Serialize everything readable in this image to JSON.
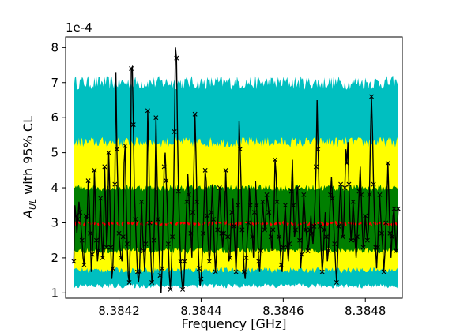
{
  "chart_data": {
    "type": "line",
    "xlabel": "Frequency [GHz]",
    "ylabel_main": "A",
    "ylabel_sub": "UL",
    "ylabel_rest": " with 95% CL",
    "offset_text": "1e-4",
    "xlim": [
      8.38407,
      8.38489
    ],
    "ylim": [
      0.85,
      8.3
    ],
    "x_ticks": [
      8.3842,
      8.3844,
      8.3846,
      8.3848
    ],
    "x_tick_labels": [
      "8.3842",
      "8.3844",
      "8.3846",
      "8.3848"
    ],
    "y_ticks": [
      1,
      2,
      3,
      4,
      5,
      6,
      7,
      8
    ],
    "y_tick_labels": [
      "1",
      "2",
      "3",
      "4",
      "5",
      "6",
      "7",
      "8"
    ],
    "colors": {
      "outer_band": "#00bfc0",
      "mid_band": "#ffff00",
      "inner_band": "#007f00",
      "median": "#ff0000",
      "observed": "#000000"
    },
    "bands": {
      "outer_upper_base": 7.0,
      "mid_upper_base": 5.3,
      "inner_upper_base": 4.0,
      "median": 2.98,
      "inner_lower_base": 2.2,
      "mid_lower_base": 1.65,
      "outer_lower_base": 1.2
    },
    "series": [
      {
        "values": [
          1.9,
          3.5,
          3.2,
          2.7,
          3.1,
          3.6,
          3.3,
          2.9,
          2.5,
          2.0,
          1.8,
          2.4,
          3.2,
          3.1,
          4.2,
          3.6,
          2.7,
          1.6,
          2.1,
          2.8,
          4.5,
          3.6,
          2.5,
          1.9,
          2.2,
          2.9,
          3.7,
          2.6,
          2.0,
          2.7,
          4.6,
          3.4,
          2.3,
          2.9,
          5.0,
          4.0,
          2.3,
          1.4,
          1.7,
          2.6,
          4.1,
          7.3,
          5.1,
          3.9,
          2.7,
          2.3,
          2.0,
          1.9,
          2.6,
          4.7,
          5.2,
          3.7,
          2.4,
          1.5,
          1.3,
          2.4,
          7.4,
          7.45,
          5.8,
          3.9,
          3.1,
          2.3,
          1.6,
          1.3,
          1.6,
          2.6,
          3.6,
          2.7,
          2.2,
          1.6,
          2.4,
          3.5,
          6.2,
          5.0,
          3.0,
          2.1,
          1.3,
          1.5,
          2.5,
          3.6,
          6.0,
          4.5,
          3.1,
          2.3,
          1.5,
          1.0,
          1.7,
          3.2,
          4.6,
          5.0,
          4.2,
          3.5,
          2.4,
          1.5,
          1.1,
          1.7,
          2.6,
          3.4,
          5.6,
          8.0,
          7.7,
          5.5,
          3.9,
          2.8,
          1.9,
          1.4,
          1.1,
          1.2,
          1.9,
          2.8,
          3.6,
          4.4,
          3.8,
          3.1,
          2.7,
          2.0,
          3.3,
          4.5,
          6.1,
          5.0,
          3.6,
          2.5,
          1.7,
          1.2,
          1.4,
          2.0,
          2.7,
          3.6,
          4.5,
          4.2,
          3.2,
          2.4,
          1.9,
          2.2,
          3.3,
          4.1,
          3.1,
          2.2,
          1.6,
          2.1,
          2.8,
          3.4,
          4.0,
          3.4,
          2.7,
          2.3,
          2.7,
          3.2,
          4.5,
          3.6,
          2.6,
          1.9,
          2.0,
          2.8,
          3.3,
          3.7,
          2.9,
          2.3,
          1.6,
          2.3,
          3.5,
          5.9,
          5.1,
          4.0,
          2.8,
          2.2,
          1.6,
          1.4,
          2.0,
          2.6,
          3.0,
          4.0,
          3.5,
          2.9,
          2.6,
          2.0,
          3.3,
          4.2,
          3.5,
          2.8,
          1.9,
          1.6,
          2.2,
          3.0,
          3.6,
          3.1,
          2.8,
          3.2,
          3.8,
          3.6,
          3.3,
          2.9,
          2.6,
          2.2,
          2.8,
          3.3,
          4.8,
          4.4,
          3.6,
          3.0,
          2.6,
          2.3,
          1.8,
          1.6,
          2.3,
          3.0,
          3.5,
          2.9,
          2.3,
          1.9,
          2.4,
          3.1,
          3.9,
          4.8,
          3.5,
          2.6,
          2.8,
          3.8,
          4.0,
          3.2,
          2.5,
          1.7,
          2.1,
          3.1,
          3.8,
          3.3,
          2.8,
          2.6,
          2.2,
          2.4,
          2.8,
          3.2,
          2.7,
          2.4,
          2.9,
          3.6,
          4.6,
          6.5,
          5.1,
          3.8,
          2.9,
          2.2,
          1.6,
          2.0,
          2.8,
          3.3,
          2.6,
          1.9,
          2.2,
          3.0,
          3.8,
          4.3,
          3.7,
          3.1,
          2.4,
          1.8,
          1.3,
          2.0,
          2.9,
          3.6,
          4.1,
          3.3,
          2.6,
          3.0,
          4.0,
          5.1,
          4.7,
          5.3,
          4.1,
          3.1,
          2.5,
          2.9,
          3.6,
          3.1,
          2.5,
          2.0,
          2.6,
          3.2,
          3.9,
          4.6,
          3.8,
          2.9,
          2.3,
          2.6,
          3.2,
          2.8,
          2.5,
          2.8,
          3.8,
          5.4,
          6.6,
          5.6,
          4.1,
          3.1,
          2.3,
          1.7,
          2.3,
          3.1,
          3.8,
          3.2,
          2.7,
          2.3,
          1.6,
          2.1,
          3.0,
          3.7,
          4.7,
          3.7,
          2.7,
          2.0,
          2.6,
          3.2,
          3.4,
          2.7,
          2.2,
          2.8,
          3.4
        ]
      }
    ]
  }
}
